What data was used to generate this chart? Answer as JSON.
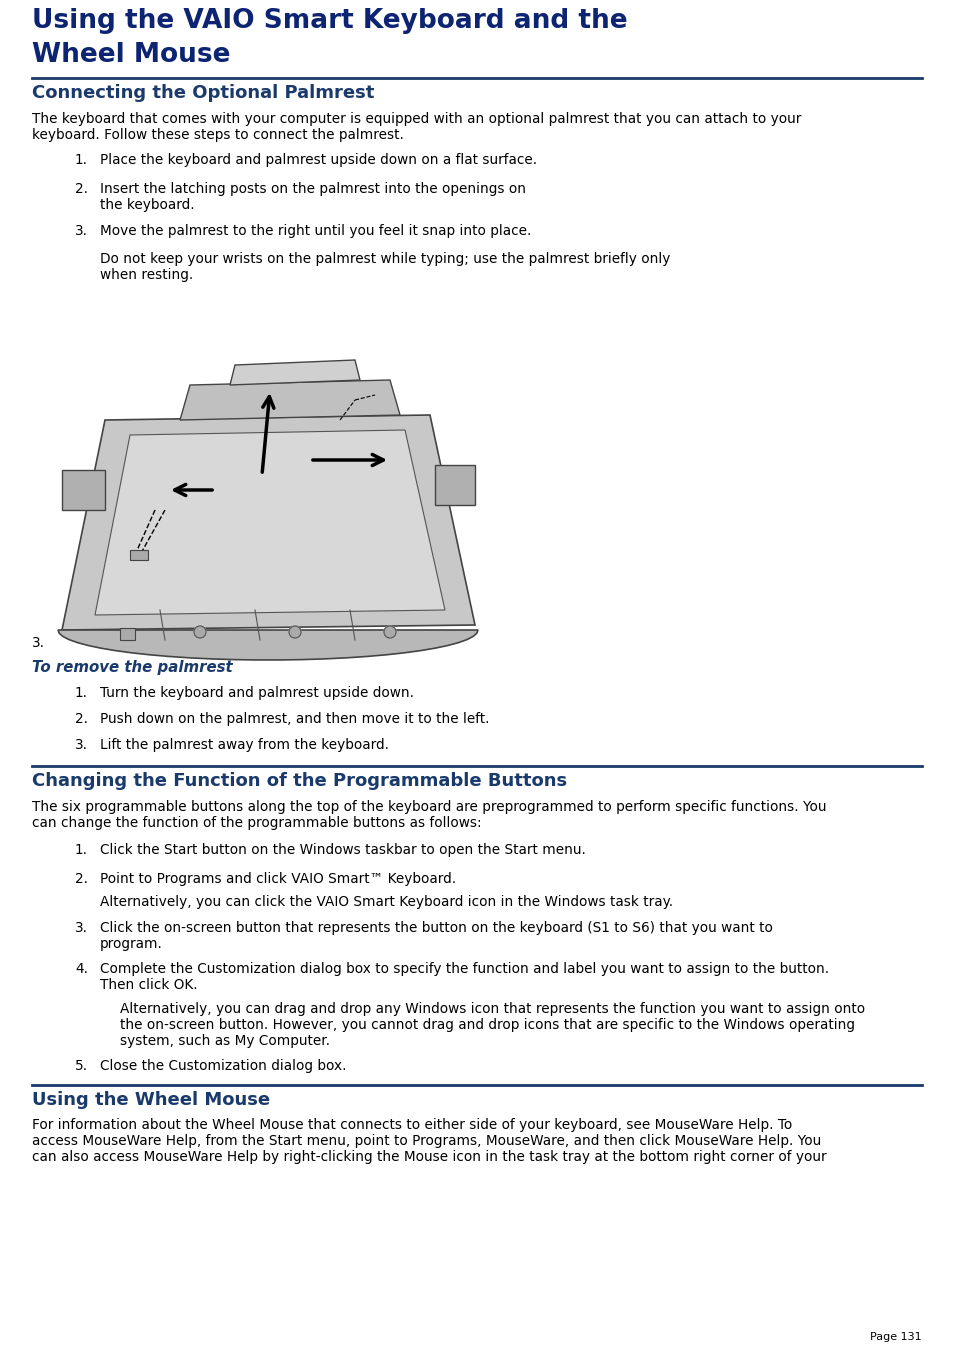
{
  "bg_color": "#ffffff",
  "main_title_line1": "Using the VAIO Smart Keyboard and the",
  "main_title_line2": "Wheel Mouse",
  "title_color": "#0d2472",
  "title_fontsize": 19,
  "divider_color": "#1a3a6b",
  "sec_title_color": "#1a3a6b",
  "sec_title_fontsize": 13,
  "body_fontsize": 9.8,
  "body_color": "#000000",
  "section1_title": "Connecting the Optional Palmrest",
  "intro1_line1": "The keyboard that comes with your computer is equipped with an optional palmrest that you can attach to your",
  "intro1_line2": "keyboard. Follow these steps to connect the palmrest.",
  "item1_1": "Place the keyboard and palmrest upside down on a flat surface.",
  "item1_2a": "Insert the latching posts on the palmrest into the openings on",
  "item1_2b": "the keyboard.",
  "item1_3": "Move the palmrest to the right until you feel it snap into place.",
  "note1_line1": "Do not keep your wrists on the palmrest while typing; use the palmrest briefly only",
  "note1_line2": "when resting.",
  "remove_title": "To remove the palmrest",
  "remove_title_color": "#1a3a6b",
  "remove_item1": "Turn the keyboard and palmrest upside down.",
  "remove_item2": "Push down on the palmrest, and then move it to the left.",
  "remove_item3": "Lift the palmrest away from the keyboard.",
  "section2_title": "Changing the Function of the Programmable Buttons",
  "intro2_line1": "The six programmable buttons along the top of the keyboard are preprogrammed to perform specific functions. You",
  "intro2_line2": "can change the function of the programmable buttons as follows:",
  "item2_1": "Click the Start button on the Windows taskbar to open the Start menu.",
  "item2_2": "Point to Programs and click VAIO Smart™ Keyboard.",
  "item2_2alt": "Alternatively, you can click the VAIO Smart Keyboard icon in the Windows task tray.",
  "item2_3a": "Click the on-screen button that represents the button on the keyboard (S1 to S6) that you want to",
  "item2_3b": "program.",
  "item2_4a": "Complete the Customization dialog box to specify the function and label you want to assign to the button.",
  "item2_4b": "Then click OK.",
  "item2_4alt1": "Alternatively, you can drag and drop any Windows icon that represents the function you want to assign onto",
  "item2_4alt2": "the on-screen button. However, you cannot drag and drop icons that are specific to the Windows operating",
  "item2_4alt3": "system, such as My Computer.",
  "item2_5": "Close the Customization dialog box.",
  "section3_title": "Using the Wheel Mouse",
  "intro3_line1": "For information about the Wheel Mouse that connects to either side of your keyboard, see MouseWare Help. To",
  "intro3_line2": "access MouseWare Help, from the Start menu, point to Programs, MouseWare, and then click MouseWare Help. You",
  "intro3_line3": "can also access MouseWare Help by right-clicking the Mouse icon in the task tray at the bottom right corner of your",
  "page_label": "Page 131"
}
